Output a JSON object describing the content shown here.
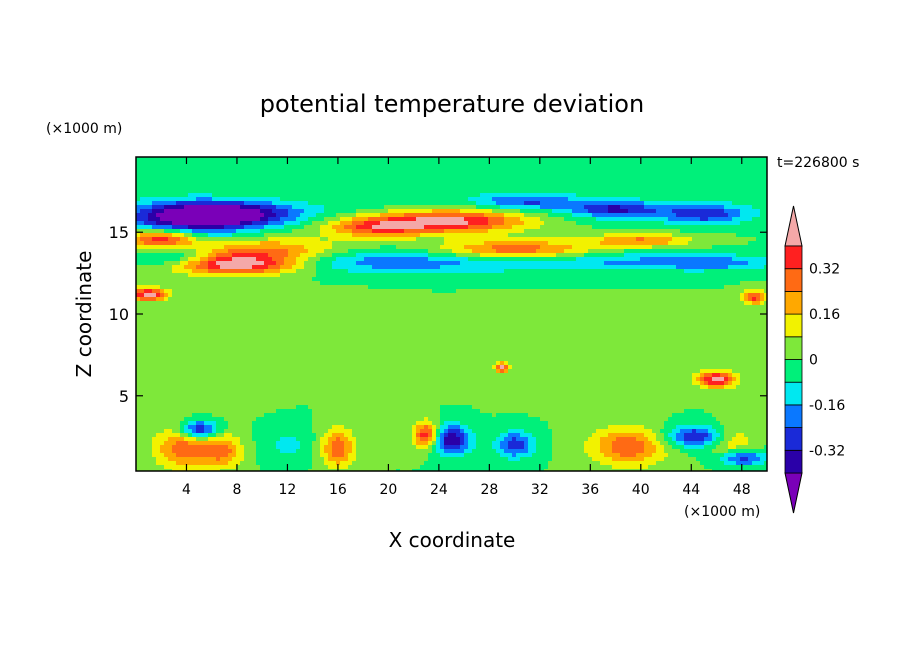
{
  "chart_data": {
    "type": "heatmap",
    "title": "potential temperature deviation",
    "time_label": "t=226800 s",
    "xlabel": "X coordinate",
    "ylabel": "Z coordinate",
    "x_unit": "(×1000 m)",
    "y_unit": "(×1000 m)",
    "xlim": [
      0,
      50
    ],
    "ylim": [
      0.4,
      19.6
    ],
    "x_ticks": [
      4,
      8,
      12,
      16,
      20,
      24,
      28,
      32,
      36,
      40,
      44,
      48
    ],
    "y_ticks": [
      5,
      10,
      15
    ],
    "colorbar": {
      "levels": [
        -0.48,
        -0.4,
        -0.32,
        -0.24,
        -0.16,
        -0.08,
        0,
        0.08,
        0.16,
        0.24,
        0.32,
        0.4
      ],
      "colors": [
        "#7a00b8",
        "#2a00a8",
        "#1a2ad8",
        "#0a78ff",
        "#00e8f0",
        "#00f07a",
        "#7ee83a",
        "#f2f200",
        "#ffa800",
        "#ff6a14",
        "#ff2020",
        "#f4a8a8"
      ],
      "tick_labels": [
        "0.32",
        "0.16",
        "0",
        "-0.16",
        "-0.32"
      ],
      "tick_values": [
        0.32,
        0.16,
        0,
        -0.16,
        -0.32
      ]
    },
    "features": [
      {
        "x": 25,
        "z": 16.5,
        "rx": 30,
        "rz": 1.0,
        "value": -0.05
      },
      {
        "x": 7,
        "z": 16.1,
        "rx": 5.5,
        "rz": 0.7,
        "value": -0.45
      },
      {
        "x": 4,
        "z": 15.6,
        "rx": 5,
        "rz": 1.2,
        "value": -0.3
      },
      {
        "x": 31,
        "z": 16.9,
        "rx": 4,
        "rz": 0.5,
        "value": -0.22
      },
      {
        "x": 38,
        "z": 16.4,
        "rx": 3.5,
        "rz": 0.5,
        "value": -0.3
      },
      {
        "x": 45,
        "z": 16.1,
        "rx": 3.5,
        "rz": 0.6,
        "value": -0.28
      },
      {
        "x": 25,
        "z": 15.7,
        "rx": 6,
        "rz": 0.7,
        "value": 0.45
      },
      {
        "x": 19,
        "z": 15.3,
        "rx": 4,
        "rz": 0.6,
        "value": 0.3
      },
      {
        "x": 2,
        "z": 14.6,
        "rx": 3,
        "rz": 0.6,
        "value": 0.45
      },
      {
        "x": 10,
        "z": 13.8,
        "rx": 6,
        "rz": 0.8,
        "value": 0.3
      },
      {
        "x": 8,
        "z": 13.0,
        "rx": 5,
        "rz": 0.6,
        "value": 0.45
      },
      {
        "x": 30,
        "z": 13.9,
        "rx": 6,
        "rz": 0.6,
        "value": 0.33
      },
      {
        "x": 40,
        "z": 14.5,
        "rx": 4,
        "rz": 0.4,
        "value": 0.25
      },
      {
        "x": 20,
        "z": 13.2,
        "rx": 12,
        "rz": 0.7,
        "value": -0.22
      },
      {
        "x": 3,
        "z": 13.5,
        "rx": 3,
        "rz": 0.6,
        "value": -0.18
      },
      {
        "x": 40,
        "z": 13.2,
        "rx": 10,
        "rz": 0.6,
        "value": -0.16
      },
      {
        "x": 46,
        "z": 13.1,
        "rx": 4,
        "rz": 0.4,
        "value": -0.12
      },
      {
        "x": 1,
        "z": 11.2,
        "rx": 1.5,
        "rz": 0.4,
        "value": 0.45
      },
      {
        "x": 49,
        "z": 11.0,
        "rx": 1,
        "rz": 0.4,
        "value": 0.35
      },
      {
        "x": 12,
        "z": 9.5,
        "rx": 6,
        "rz": 1.6,
        "value": 0.03
      },
      {
        "x": 33,
        "z": 7.5,
        "rx": 7,
        "rz": 2.0,
        "value": 0.03
      },
      {
        "x": 5,
        "z": 4.8,
        "rx": 4,
        "rz": 1.0,
        "value": 0.02
      },
      {
        "x": 46,
        "z": 6.0,
        "rx": 1.5,
        "rz": 0.5,
        "value": 0.45
      },
      {
        "x": 29,
        "z": 6.7,
        "rx": 0.5,
        "rz": 0.3,
        "value": 0.4
      },
      {
        "x": 4,
        "z": 1.8,
        "rx": 2.5,
        "rz": 1.3,
        "value": 0.3
      },
      {
        "x": 7,
        "z": 1.6,
        "rx": 1.5,
        "rz": 1.0,
        "value": 0.22
      },
      {
        "x": 16,
        "z": 1.8,
        "rx": 1.3,
        "rz": 1.2,
        "value": 0.3
      },
      {
        "x": 23,
        "z": 2.6,
        "rx": 1.0,
        "rz": 0.8,
        "value": 0.4
      },
      {
        "x": 39,
        "z": 1.9,
        "rx": 3,
        "rz": 1.2,
        "value": 0.3
      },
      {
        "x": 47,
        "z": 2.2,
        "rx": 2,
        "rz": 1.0,
        "value": 0.2
      },
      {
        "x": 5,
        "z": 2.9,
        "rx": 1.5,
        "rz": 0.6,
        "value": -0.4
      },
      {
        "x": 25,
        "z": 2.3,
        "rx": 1.5,
        "rz": 0.9,
        "value": -0.4
      },
      {
        "x": 30,
        "z": 2.0,
        "rx": 1.5,
        "rz": 0.8,
        "value": -0.3
      },
      {
        "x": 44.5,
        "z": 2.5,
        "rx": 2.5,
        "rz": 0.7,
        "value": -0.35
      },
      {
        "x": 48,
        "z": 1.2,
        "rx": 2,
        "rz": 0.5,
        "value": -0.3
      },
      {
        "x": 12,
        "z": 2.0,
        "rx": 2,
        "rz": 1.0,
        "value": -0.1
      }
    ]
  }
}
